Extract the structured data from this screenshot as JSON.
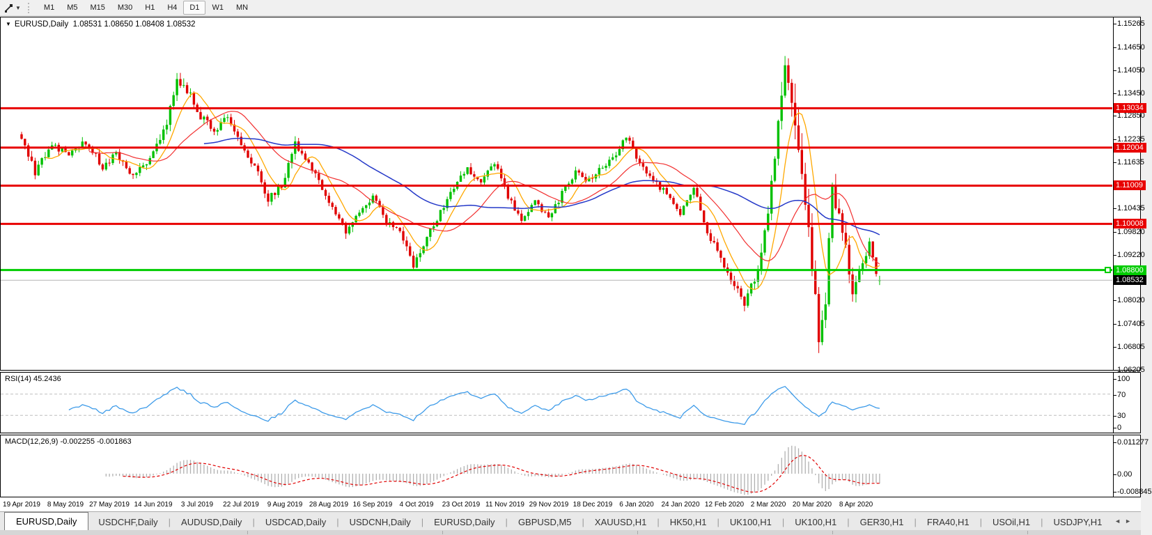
{
  "toolbar": {
    "cursor_tool_icon": "crosshair-tool",
    "dropdown_marker": "▼",
    "timeframes": [
      "M1",
      "M5",
      "M15",
      "M30",
      "H1",
      "H4",
      "D1",
      "W1",
      "MN"
    ],
    "active_timeframe": "D1"
  },
  "header": {
    "menu_marker": "▼",
    "symbol": "EURUSD,Daily",
    "ohlc_text": "1.08531 1.08650 1.08408 1.08532",
    "open": "1.08531",
    "high": "1.08650",
    "low": "1.08408",
    "close": "1.08532"
  },
  "chart_data": {
    "type": "candlestick",
    "symbol": "EURUSD",
    "timeframe": "Daily",
    "current_bar": {
      "open": 1.08531,
      "high": 1.0865,
      "low": 1.08408,
      "close": 1.08532
    },
    "bar_count": 255,
    "x_tick_interval_bars": 13,
    "x_ticks": [
      "19 Apr 2019",
      "8 May 2019",
      "27 May 2019",
      "14 Jun 2019",
      "3 Jul 2019",
      "22 Jul 2019",
      "9 Aug 2019",
      "28 Aug 2019",
      "16 Sep 2019",
      "4 Oct 2019",
      "23 Oct 2019",
      "11 Nov 2019",
      "29 Nov 2019",
      "18 Dec 2019",
      "6 Jan 2020",
      "24 Jan 2020",
      "12 Feb 2020",
      "2 Mar 2020",
      "20 Mar 2020",
      "8 Apr 2020"
    ],
    "y_ticks": [
      {
        "label": "1.15265",
        "value": 1.15265
      },
      {
        "label": "1.14650",
        "value": 1.1465
      },
      {
        "label": "1.14050",
        "value": 1.1405
      },
      {
        "label": "1.13450",
        "value": 1.1345
      },
      {
        "label": "1.12850",
        "value": 1.1285
      },
      {
        "label": "1.12235",
        "value": 1.12235
      },
      {
        "label": "1.11635",
        "value": 1.11635
      },
      {
        "label": "1.10435",
        "value": 1.10435
      },
      {
        "label": "1.09820",
        "value": 1.0982
      },
      {
        "label": "1.09220",
        "value": 1.0922
      },
      {
        "label": "1.08020",
        "value": 1.0802
      },
      {
        "label": "1.07405",
        "value": 1.07405
      },
      {
        "label": "1.06805",
        "value": 1.06805
      },
      {
        "label": "1.06205",
        "value": 1.06205
      }
    ],
    "line_levels": [
      {
        "label": "1.13034",
        "value": 1.13034,
        "line_color": "#e80000",
        "label_bg": "#e80000",
        "label_fg": "#ffffff",
        "width": 3,
        "handle": false
      },
      {
        "label": "1.12004",
        "value": 1.12004,
        "line_color": "#e80000",
        "label_bg": "#e80000",
        "label_fg": "#ffffff",
        "width": 3,
        "handle": false
      },
      {
        "label": "1.11009",
        "value": 1.11009,
        "line_color": "#e80000",
        "label_bg": "#e80000",
        "label_fg": "#ffffff",
        "width": 3,
        "handle": false
      },
      {
        "label": "1.10008",
        "value": 1.10008,
        "line_color": "#e80000",
        "label_bg": "#e80000",
        "label_fg": "#ffffff",
        "width": 3,
        "handle": false
      },
      {
        "label": "1.08800",
        "value": 1.088,
        "line_color": "#00cc00",
        "label_bg": "#00cc00",
        "label_fg": "#ffffff",
        "width": 3,
        "handle": true
      },
      {
        "label": "1.08532",
        "value": 1.08532,
        "line_color": "#b4b4b4",
        "label_bg": "#000000",
        "label_fg": "#ffffff",
        "width": 1,
        "handle": false
      }
    ],
    "candle_colors": {
      "bull": "#00c000",
      "bear": "#e00000"
    },
    "moving_averages": [
      {
        "period": 8,
        "color": "#ffa800",
        "width": 1.3
      },
      {
        "period": 21,
        "color": "#f23030",
        "width": 1.2
      },
      {
        "period": 55,
        "color": "#2438c8",
        "width": 1.5
      }
    ],
    "close_anchors": [
      [
        0,
        1.1235,
        16
      ],
      [
        4,
        1.114,
        14
      ],
      [
        9,
        1.1205,
        11
      ],
      [
        14,
        1.1185,
        10
      ],
      [
        19,
        1.1215,
        10
      ],
      [
        24,
        1.115,
        11
      ],
      [
        28,
        1.1185,
        10
      ],
      [
        33,
        1.1125,
        11
      ],
      [
        38,
        1.1175,
        12
      ],
      [
        43,
        1.127,
        15
      ],
      [
        46,
        1.1385,
        18
      ],
      [
        49,
        1.135,
        14
      ],
      [
        53,
        1.128,
        12
      ],
      [
        57,
        1.1245,
        11
      ],
      [
        61,
        1.1285,
        10
      ],
      [
        65,
        1.1215,
        11
      ],
      [
        69,
        1.115,
        11
      ],
      [
        73,
        1.1065,
        13
      ],
      [
        77,
        1.11,
        11
      ],
      [
        81,
        1.1205,
        13
      ],
      [
        85,
        1.1165,
        11
      ],
      [
        89,
        1.1095,
        11
      ],
      [
        93,
        1.1035,
        11
      ],
      [
        96,
        1.098,
        13
      ],
      [
        100,
        1.104,
        11
      ],
      [
        104,
        1.107,
        10
      ],
      [
        108,
        1.101,
        10
      ],
      [
        112,
        1.099,
        10
      ],
      [
        116,
        1.0895,
        12
      ],
      [
        120,
        1.0965,
        10
      ],
      [
        124,
        1.103,
        10
      ],
      [
        128,
        1.11,
        10
      ],
      [
        132,
        1.1145,
        10
      ],
      [
        136,
        1.111,
        9
      ],
      [
        140,
        1.116,
        9
      ],
      [
        144,
        1.107,
        9
      ],
      [
        148,
        1.101,
        9
      ],
      [
        152,
        1.106,
        9
      ],
      [
        156,
        1.1015,
        9
      ],
      [
        160,
        1.108,
        9
      ],
      [
        164,
        1.1135,
        9
      ],
      [
        168,
        1.1115,
        9
      ],
      [
        172,
        1.115,
        9
      ],
      [
        176,
        1.1185,
        9
      ],
      [
        179,
        1.123,
        9
      ],
      [
        183,
        1.116,
        9
      ],
      [
        187,
        1.111,
        9
      ],
      [
        191,
        1.108,
        9
      ],
      [
        195,
        1.1025,
        9
      ],
      [
        199,
        1.1095,
        9
      ],
      [
        203,
        1.098,
        10
      ],
      [
        207,
        1.0915,
        11
      ],
      [
        211,
        1.084,
        12
      ],
      [
        214,
        1.079,
        14
      ],
      [
        217,
        1.085,
        18
      ],
      [
        220,
        1.098,
        24
      ],
      [
        222,
        1.11,
        28
      ],
      [
        224,
        1.129,
        32
      ],
      [
        226,
        1.144,
        38
      ],
      [
        228,
        1.133,
        42
      ],
      [
        230,
        1.118,
        42
      ],
      [
        232,
        1.106,
        42
      ],
      [
        234,
        1.088,
        42
      ],
      [
        236,
        1.07,
        38
      ],
      [
        238,
        1.079,
        36
      ],
      [
        240,
        1.109,
        32
      ],
      [
        242,
        1.102,
        28
      ],
      [
        244,
        1.093,
        24
      ],
      [
        246,
        1.081,
        20
      ],
      [
        248,
        1.088,
        16
      ],
      [
        250,
        1.091,
        13
      ],
      [
        251,
        1.095,
        10
      ],
      [
        253,
        1.087,
        9
      ],
      [
        254,
        1.0853,
        9
      ]
    ],
    "indicators": {
      "rsi": {
        "label": "RSI(14) 45.2436",
        "period": 14,
        "value": 45.2436,
        "line_color": "#3d9be9",
        "levels": [
          70,
          30
        ],
        "y_ticks": [
          {
            "label": "100",
            "value": 100
          },
          {
            "label": "70",
            "value": 70
          },
          {
            "label": "30",
            "value": 30
          },
          {
            "label": "0",
            "value": 0
          }
        ]
      },
      "macd": {
        "label": "MACD(12,26,9) -0.002255 -0.001863",
        "fast": 12,
        "slow": 26,
        "signal": 9,
        "macd_value": -0.002255,
        "signal_value": -0.001863,
        "hist_color": "#b0b0b0",
        "signal_color": "#e00000",
        "y_ticks": [
          {
            "label": "0.011277",
            "value": 0.011277
          },
          {
            "label": "0.00",
            "value": 0
          },
          {
            "label": "-0.008845",
            "value": -0.008845
          }
        ]
      }
    }
  },
  "tabs": {
    "items": [
      {
        "label": "EURUSD,Daily",
        "active": true
      },
      {
        "label": "USDCHF,Daily",
        "active": false
      },
      {
        "label": "AUDUSD,Daily",
        "active": false
      },
      {
        "label": "USDCAD,Daily",
        "active": false
      },
      {
        "label": "USDCNH,Daily",
        "active": false
      },
      {
        "label": "EURUSD,Daily",
        "active": false
      },
      {
        "label": "GBPUSD,M5",
        "active": false
      },
      {
        "label": "XAUUSD,H1",
        "active": false
      },
      {
        "label": "HK50,H1",
        "active": false
      },
      {
        "label": "UK100,H1",
        "active": false
      },
      {
        "label": "UK100,H1",
        "active": false
      },
      {
        "label": "GER30,H1",
        "active": false
      },
      {
        "label": "FRA40,H1",
        "active": false
      },
      {
        "label": "USOil,H1",
        "active": false
      },
      {
        "label": "USDJPY,H1",
        "active": false
      }
    ],
    "scroll_left": "◄",
    "scroll_right": "►"
  }
}
